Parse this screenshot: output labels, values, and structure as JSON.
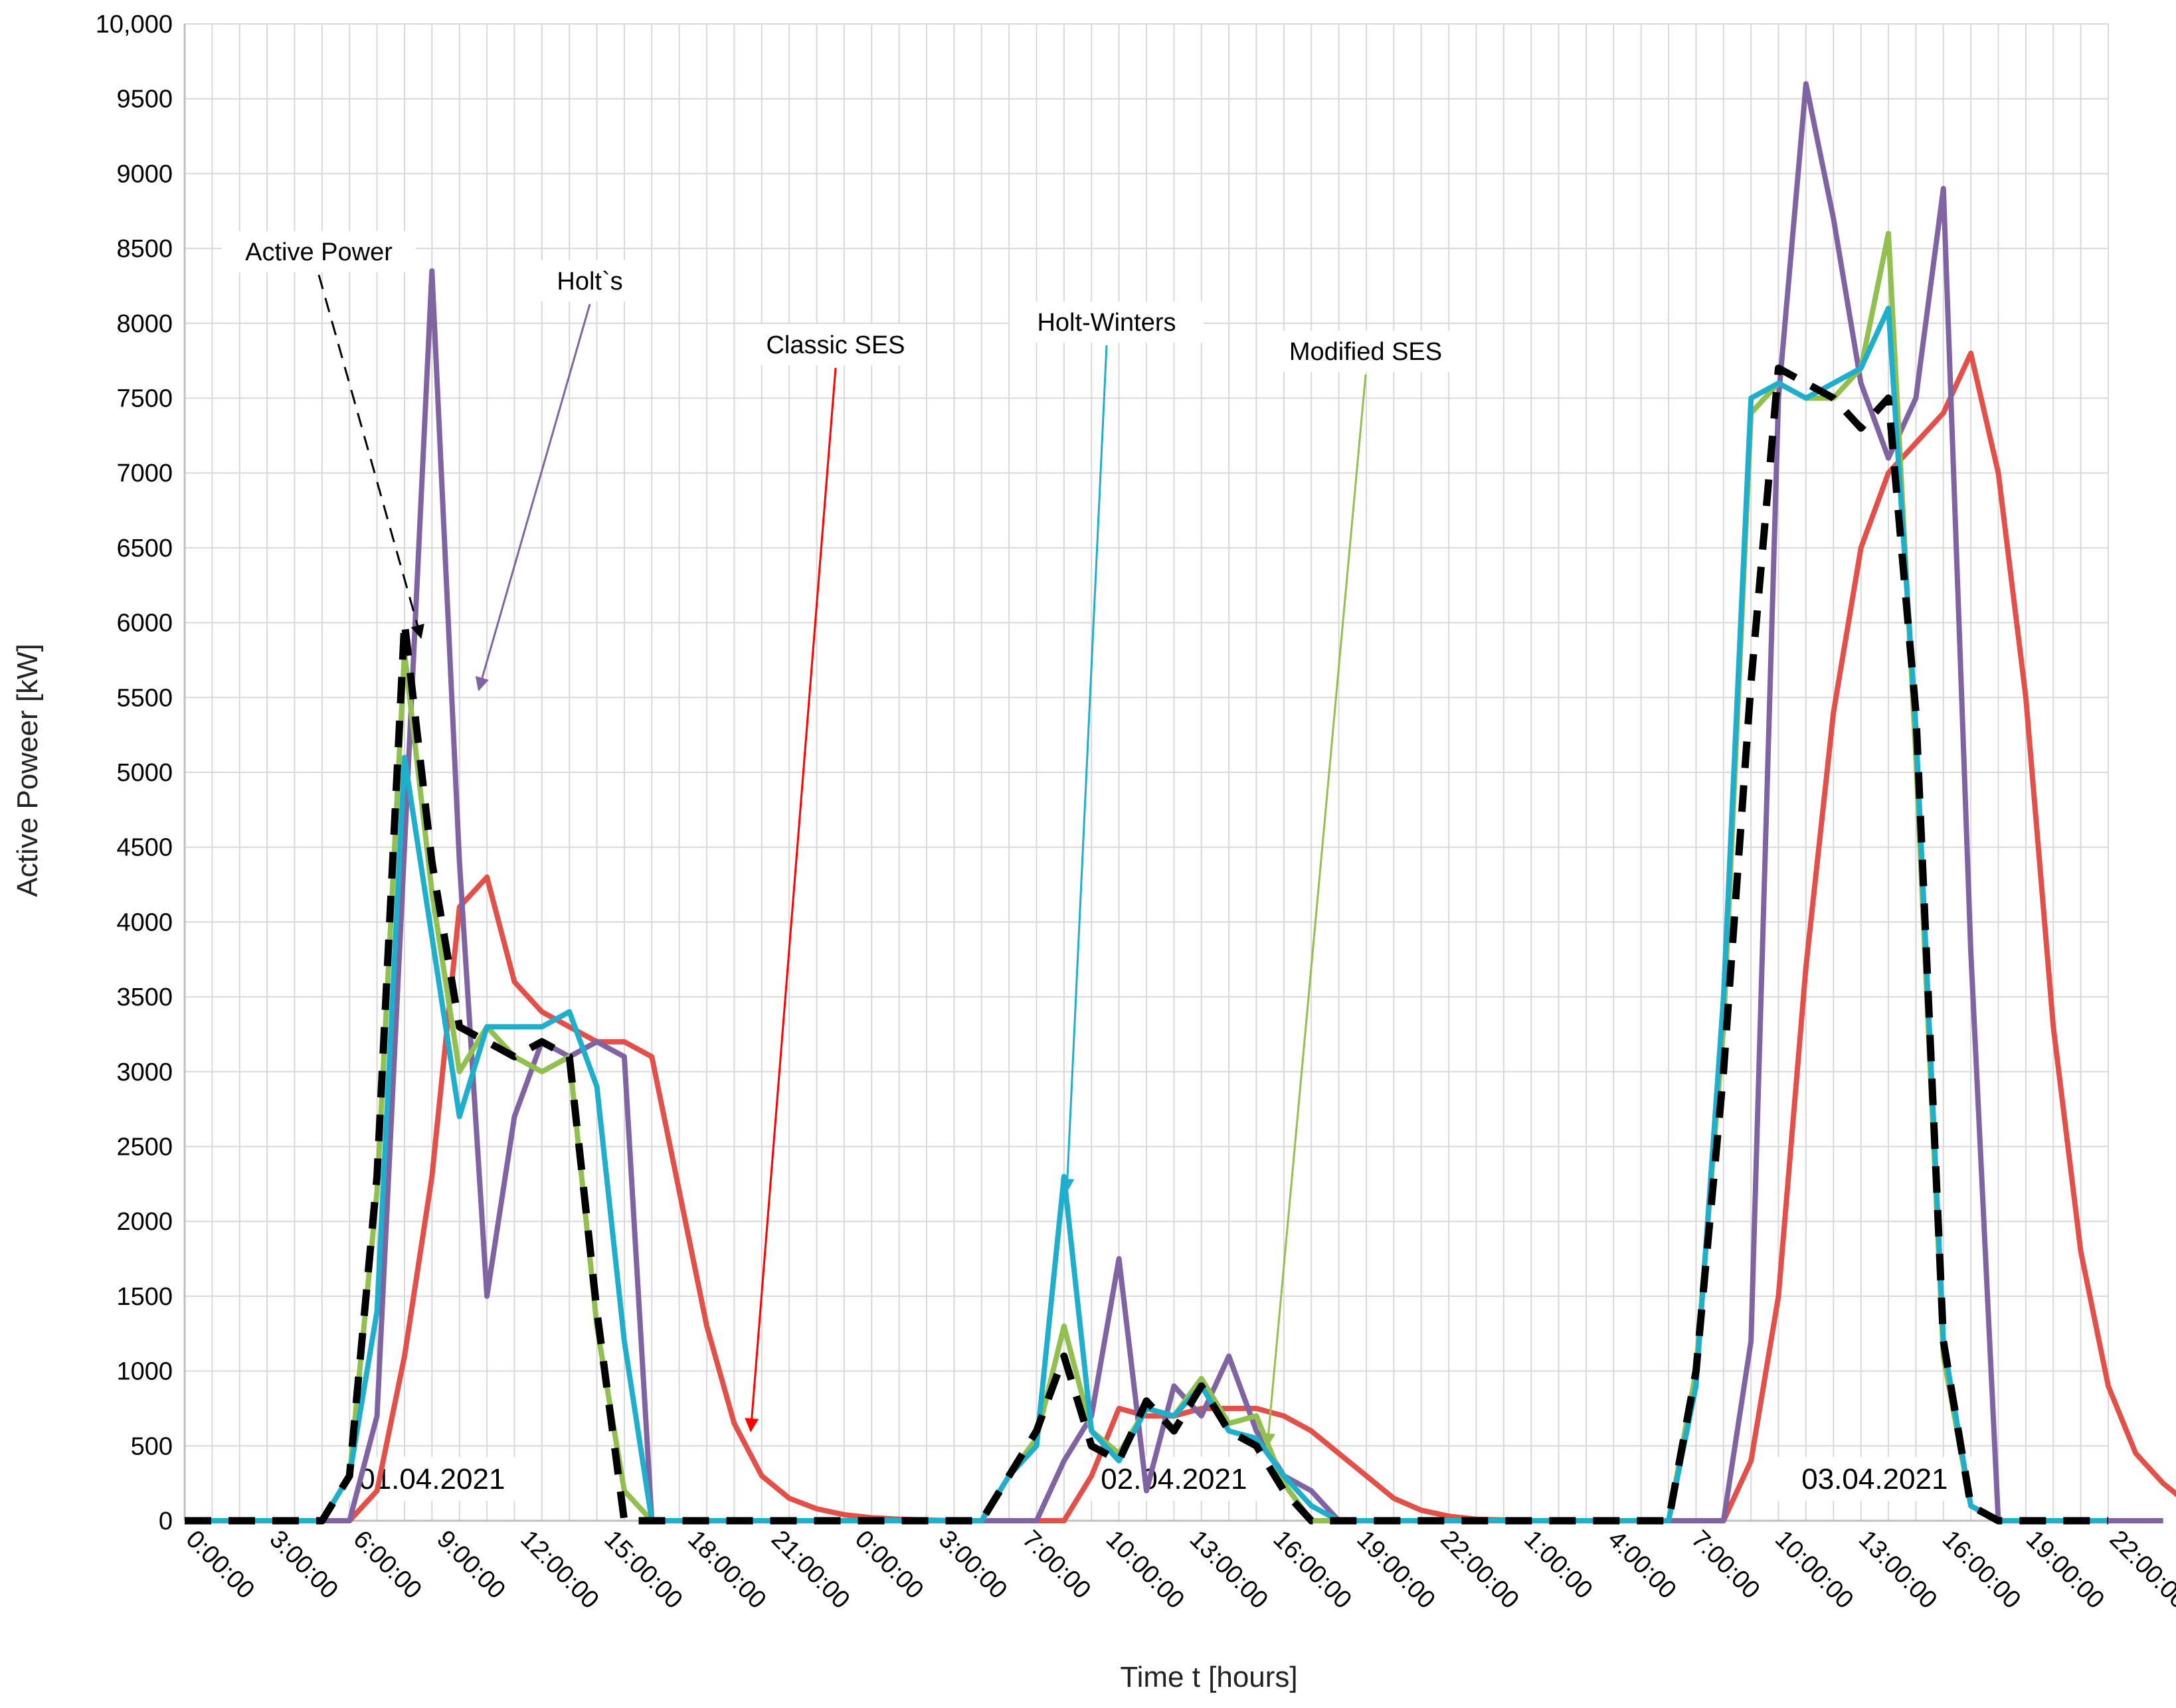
{
  "chart_data": {
    "type": "line",
    "xlabel": "Time t [hours]",
    "ylabel": "Active Poweer  [kW]",
    "ylim": [
      0,
      10000
    ],
    "yticks": [
      "0",
      "500",
      "1000",
      "1500",
      "2000",
      "2500",
      "3000",
      "3500",
      "4000",
      "4500",
      "5000",
      "5500",
      "6000",
      "6500",
      "7000",
      "7500",
      "8000",
      "8500",
      "9000",
      "9500",
      "10,000"
    ],
    "x_tick_labels": [
      "0:00:00",
      "3:00:00",
      "6:00:00",
      "9:00:00",
      "12:00:00",
      "15:00:00",
      "18:00:00",
      "21:00:00",
      "0:00:00",
      "3:00:00",
      "7:00:00",
      "10:00:00",
      "13:00:00",
      "16:00:00",
      "19:00:00",
      "22:00:00",
      "1:00:00",
      "4:00:00",
      "7:00:00",
      "10:00:00",
      "13:00:00",
      "16:00:00",
      "19:00:00",
      "22:00:00"
    ],
    "grid": true,
    "date_labels": [
      {
        "text": "01.04.2021",
        "x": 9
      },
      {
        "text": "02.04.2021",
        "x": 36
      },
      {
        "text": "03.04.2021",
        "x": 61.5
      }
    ],
    "annotations": [
      {
        "text": "Active Power",
        "series": 0
      },
      {
        "text": "Holt`s",
        "series": 1
      },
      {
        "text": "Classic SES",
        "series": 2
      },
      {
        "text": "Holt-Winters",
        "series": 3
      },
      {
        "text": "Modified SES",
        "series": 4
      }
    ],
    "series": [
      {
        "name": "Active Power",
        "color": "#000000",
        "style": "dashed",
        "values": [
          0,
          0,
          0,
          0,
          0,
          0,
          300,
          2300,
          6000,
          4400,
          3300,
          3200,
          3100,
          3200,
          3100,
          1400,
          0,
          0,
          0,
          0,
          0,
          0,
          0,
          0,
          0,
          0,
          0,
          0,
          0,
          0,
          300,
          600,
          1100,
          500,
          400,
          800,
          600,
          900,
          600,
          500,
          200,
          0,
          0,
          0,
          0,
          0,
          0,
          0,
          0,
          0,
          0,
          0,
          0,
          0,
          0,
          1000,
          3000,
          5600,
          7700,
          7600,
          7500,
          7300,
          7500,
          5400,
          1200,
          100,
          0,
          0,
          0,
          0,
          0
        ]
      },
      {
        "name": "Holt`s",
        "color": "#8064a2",
        "style": "solid",
        "values": [
          0,
          0,
          0,
          0,
          0,
          0,
          0,
          700,
          4500,
          8350,
          4400,
          1500,
          2700,
          3200,
          3100,
          3200,
          3100,
          0,
          0,
          0,
          0,
          0,
          0,
          0,
          0,
          0,
          0,
          0,
          0,
          0,
          0,
          0,
          400,
          700,
          1750,
          200,
          900,
          700,
          1100,
          600,
          300,
          200,
          0,
          0,
          0,
          0,
          0,
          0,
          0,
          0,
          0,
          0,
          0,
          0,
          0,
          0,
          0,
          1200,
          7500,
          9600,
          8700,
          7600,
          7100,
          7500,
          8900,
          3800,
          0,
          0,
          0,
          0,
          0,
          0,
          0
        ]
      },
      {
        "name": "Classic SES",
        "color": "#e2504a",
        "style": "solid",
        "values": [
          0,
          0,
          0,
          0,
          0,
          0,
          0,
          200,
          1100,
          2300,
          4100,
          4300,
          3600,
          3400,
          3300,
          3200,
          3200,
          3100,
          2200,
          1300,
          650,
          300,
          150,
          80,
          40,
          20,
          10,
          5,
          0,
          0,
          0,
          0,
          0,
          300,
          750,
          700,
          700,
          750,
          750,
          750,
          700,
          600,
          450,
          300,
          150,
          70,
          30,
          10,
          5,
          0,
          0,
          0,
          0,
          0,
          0,
          0,
          0,
          400,
          1500,
          3700,
          5400,
          6500,
          7000,
          7200,
          7400,
          7800,
          7000,
          5500,
          3300,
          1800,
          900,
          450,
          250,
          100
        ]
      },
      {
        "name": "Holt-Winters",
        "color": "#1faecb",
        "style": "solid",
        "values": [
          0,
          0,
          0,
          0,
          0,
          0,
          300,
          1400,
          5100,
          3900,
          2700,
          3300,
          3300,
          3300,
          3400,
          2900,
          1200,
          0,
          0,
          0,
          0,
          0,
          0,
          0,
          0,
          0,
          0,
          0,
          0,
          0,
          300,
          500,
          2300,
          600,
          400,
          750,
          700,
          900,
          600,
          550,
          300,
          100,
          0,
          0,
          0,
          0,
          0,
          0,
          0,
          0,
          0,
          0,
          0,
          0,
          0,
          900,
          3500,
          7500,
          7600,
          7500,
          7600,
          7700,
          8100,
          5300,
          1200,
          100,
          0,
          0,
          0,
          0,
          0
        ]
      },
      {
        "name": "Modified SES",
        "color": "#92c050",
        "style": "solid",
        "values": [
          0,
          0,
          0,
          0,
          0,
          0,
          300,
          2200,
          5800,
          4200,
          3000,
          3300,
          3100,
          3000,
          3100,
          1300,
          200,
          0,
          0,
          0,
          0,
          0,
          0,
          0,
          0,
          0,
          0,
          0,
          0,
          0,
          300,
          550,
          1300,
          600,
          450,
          750,
          700,
          950,
          650,
          700,
          250,
          0,
          0,
          0,
          0,
          0,
          0,
          0,
          0,
          0,
          0,
          0,
          0,
          0,
          0,
          1000,
          3300,
          7400,
          7600,
          7500,
          7500,
          7700,
          8600,
          5100,
          1100,
          100,
          0,
          0,
          0,
          0,
          0
        ]
      }
    ]
  }
}
